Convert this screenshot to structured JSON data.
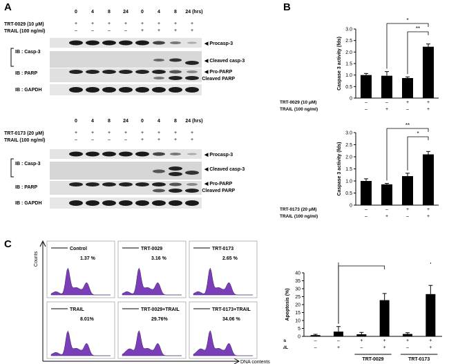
{
  "panels": {
    "a": "A",
    "b": "B",
    "c": "C"
  },
  "blot_top": {
    "timepoints": [
      "0",
      "4",
      "8",
      "24",
      "0",
      "4",
      "8",
      "24 (hrs)"
    ],
    "cpd_label": "TRT-0029 (10 μM)",
    "cpd_signs": [
      "+",
      "+",
      "+",
      "+",
      "+",
      "+",
      "+",
      "+"
    ],
    "trail_label": "TRAIL (100 ng/ml)",
    "trail_signs": [
      "–",
      "–",
      "–",
      "–",
      "+",
      "+",
      "+",
      "+"
    ],
    "ib_casp": "IB : Casp-3",
    "procasp": "Procasp-3",
    "cleaved_casp": "Cleaved casp-3",
    "ib_parp": "IB : PARP",
    "pro_parp": "Pro-PARP",
    "cleaved_parp": "Cleaved PARP",
    "ib_gapdh": "IB : GAPDH"
  },
  "blot_bottom": {
    "timepoints": [
      "0",
      "4",
      "8",
      "24",
      "0",
      "4",
      "8",
      "24 (hrs)"
    ],
    "cpd_label": "TRT-0173 (20 μM)",
    "cpd_signs": [
      "+",
      "+",
      "+",
      "+",
      "+",
      "+",
      "+",
      "+"
    ],
    "trail_label": "TRAIL (100 ng/ml)",
    "trail_signs": [
      "–",
      "–",
      "–",
      "–",
      "+",
      "+",
      "+",
      "+"
    ],
    "ib_casp": "IB : Casp-3",
    "procasp": "Procasp-3",
    "cleaved_casp": "Cleaved casp-3",
    "ib_parp": "IB : PARP",
    "pro_parp": "Pro-PARP",
    "cleaved_parp": "Cleaved PARP",
    "ib_gapdh": "IB : GAPDH"
  },
  "chart_data": [
    {
      "type": "bar",
      "ylabel": "Caspase 3 activity (fds)",
      "values": [
        1.0,
        0.97,
        0.87,
        2.23
      ],
      "errors": [
        0.07,
        0.18,
        0.05,
        0.12
      ],
      "ylim": [
        0,
        3
      ],
      "yticks": [
        "0",
        "0.5",
        "1.0",
        "1.5",
        "2.0",
        "2.5",
        "3.0"
      ],
      "sig": [
        "*",
        "**"
      ],
      "row1_label": "TRT-0029 (10 μM)",
      "row1": [
        "–",
        "–",
        "+",
        "+"
      ],
      "row2_label": "TRAIL (100 ng/ml)",
      "row2": [
        "–",
        "+",
        "–",
        "+"
      ]
    },
    {
      "type": "bar",
      "ylabel": "Caspase 3 activity (fds)",
      "values": [
        1.0,
        0.86,
        1.2,
        2.1
      ],
      "errors": [
        0.09,
        0.04,
        0.12,
        0.12
      ],
      "ylim": [
        0,
        3
      ],
      "yticks": [
        "0",
        "0.5",
        "1.0",
        "1.5",
        "2.0",
        "2.5",
        "3.0"
      ],
      "sig": [
        "**",
        "*"
      ],
      "row1_label": "TRT-0173 (20 μM)",
      "row1": [
        "–",
        "–",
        "+",
        "+"
      ],
      "row2_label": "TRAIL (100 ng/ml)",
      "row2": [
        "–",
        "+",
        "–",
        "+"
      ]
    },
    {
      "type": "bar",
      "ylabel": "Apoptosis (%)",
      "values": [
        0.8,
        3.0,
        1.3,
        22.8,
        1.5,
        26.6
      ],
      "errors": [
        0.5,
        3.2,
        1.2,
        4.2,
        0.8,
        5.5
      ],
      "ylim": [
        0,
        40
      ],
      "yticks": [
        "0",
        "5",
        "10",
        "15",
        "20",
        "25",
        "30",
        "35",
        "40"
      ],
      "sig": [
        "***",
        "***"
      ],
      "row1_label": "Cpds",
      "row1": [
        "–",
        "–",
        "+",
        "+",
        "+",
        "+"
      ],
      "row2_label": "TRAIL",
      "row2": [
        "–",
        "+",
        "–",
        "+",
        "–",
        "+"
      ],
      "groups": [
        "TRT-0029",
        "TRT-0173"
      ]
    }
  ],
  "flow": {
    "xlabel": "DNA contents",
    "ylabel": "Counts",
    "panels": [
      {
        "name": "Control",
        "pct": "1.37 %"
      },
      {
        "name": "TRT-0029",
        "pct": "3.16 %"
      },
      {
        "name": "TRT-0173",
        "pct": "2.65 %"
      },
      {
        "name": "TRAIL",
        "pct": "8.01%"
      },
      {
        "name": "TRT-0029+TRAIL",
        "pct": "29.76%"
      },
      {
        "name": "TRT-0173+TRAIL",
        "pct": "34.06 %"
      }
    ]
  },
  "colors": {
    "histogram": "#7a3fb8",
    "bar": "#000000"
  }
}
